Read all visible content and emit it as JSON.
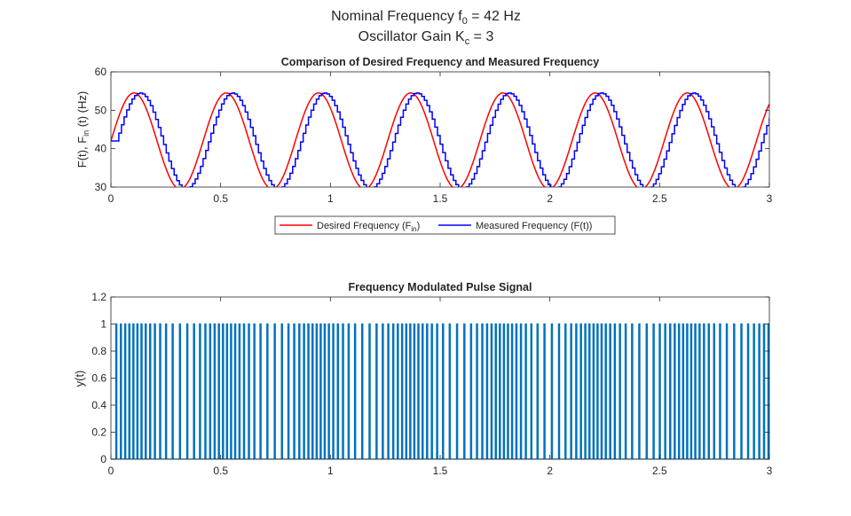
{
  "figure": {
    "title_line1_main": "Nominal Frequency f",
    "title_line1_sub": "0",
    "title_line1_rest": " = 42 Hz",
    "title_line2_main": "Oscillator Gain K",
    "title_line2_sub": "c",
    "title_line2_rest": " = 3"
  },
  "chart_data": [
    {
      "type": "line",
      "title": "Comparison of Desired Frequency and Measured Frequency",
      "xlabel": "",
      "ylabel_parts": [
        "F(t), F",
        "in",
        " (t) (Hz)"
      ],
      "xlim": [
        0,
        3
      ],
      "ylim": [
        30,
        60
      ],
      "xticks": [
        "0",
        "0.5",
        "1",
        "1.5",
        "2",
        "2.5",
        "3"
      ],
      "yticks": [
        "30",
        "40",
        "50",
        "60"
      ],
      "legend": {
        "placement": "bottom-outside",
        "entries": [
          "Desired Frequency (F",
          "in",
          ")",
          "Measured Frequency (F(t))"
        ]
      },
      "series": [
        {
          "name": "Desired Frequency (Fin)",
          "color": "#ff0000",
          "model": {
            "offset": 42,
            "amplitude": 12.5,
            "mod_freq_hz": 2.38,
            "delay_s": 0,
            "step_s": 0.001
          }
        },
        {
          "name": "Measured Frequency (F(t))",
          "color": "#0000ff",
          "model": {
            "offset": 42,
            "amplitude": 12.5,
            "mod_freq_hz": 2.38,
            "delay_s": 0.025,
            "step_s": 0.012
          }
        }
      ]
    },
    {
      "type": "line",
      "title": "Frequency Modulated Pulse Signal",
      "xlabel": "",
      "ylabel": "y(t)",
      "xlim": [
        0,
        3
      ],
      "ylim": [
        0,
        1.2
      ],
      "xticks": [
        "0",
        "0.5",
        "1",
        "1.5",
        "2",
        "2.5",
        "3"
      ],
      "yticks": [
        "0",
        "0.2",
        "0.4",
        "0.6",
        "0.8",
        "1",
        "1.2"
      ],
      "series": [
        {
          "name": "y(t)",
          "color": "#0072bd",
          "pulse_high": 1,
          "pulse_low": 0,
          "pulse_width_s": 0.004,
          "freq_source": "Desired Frequency"
        }
      ]
    }
  ]
}
